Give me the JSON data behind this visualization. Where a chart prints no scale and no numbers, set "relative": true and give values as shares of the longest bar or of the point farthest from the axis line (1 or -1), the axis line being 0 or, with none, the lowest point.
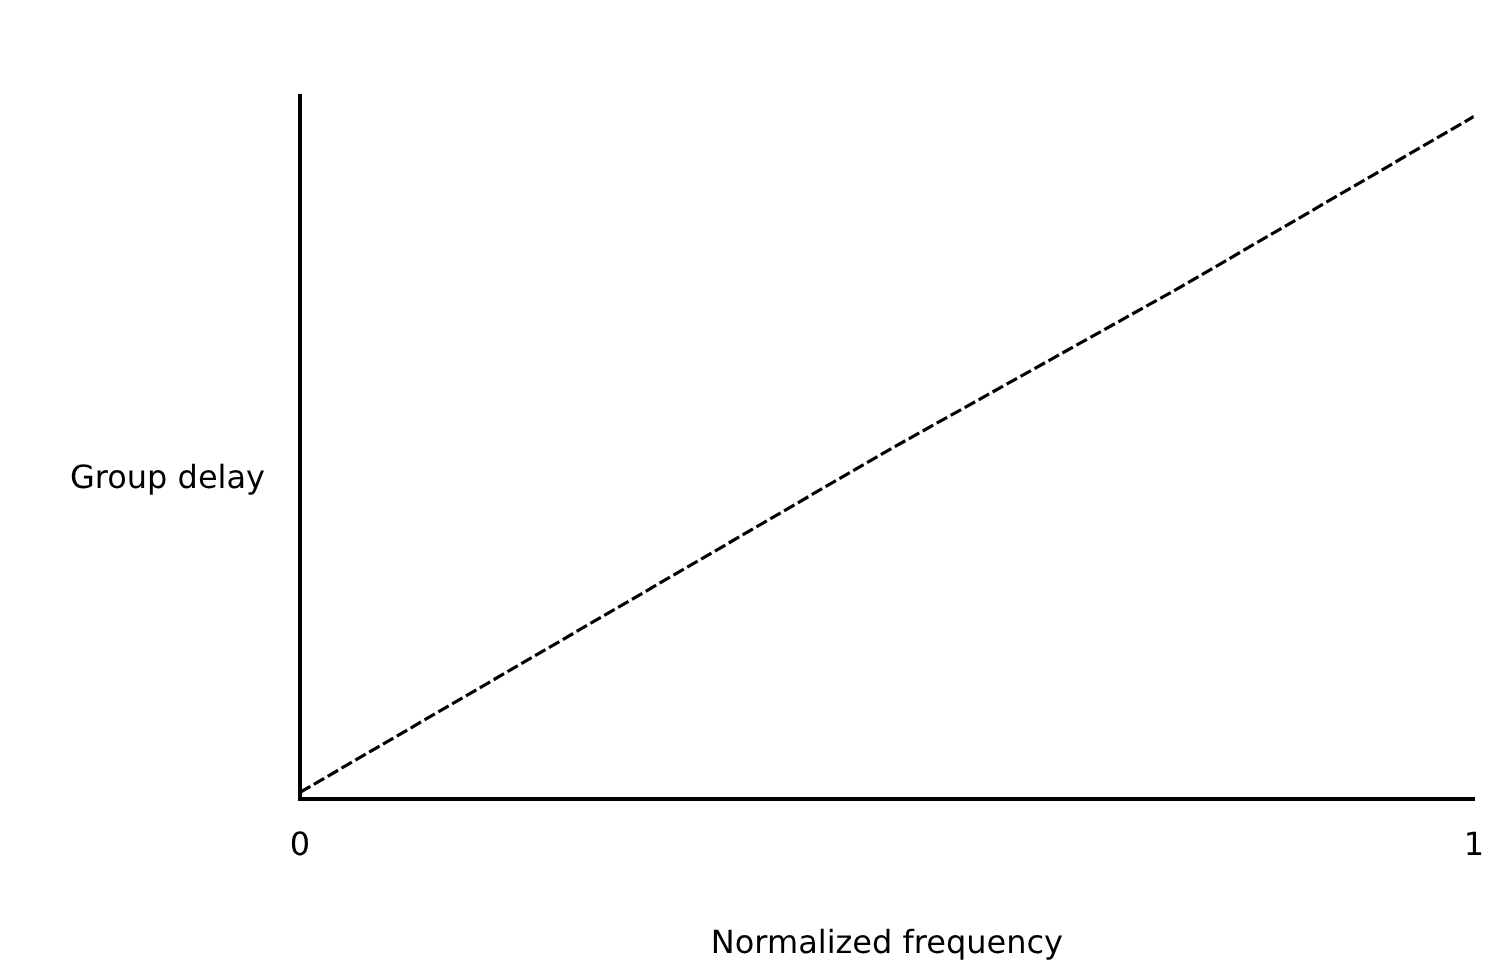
{
  "chart_data": {
    "type": "line",
    "xlabel": "Normalized frequency",
    "ylabel": "Group delay",
    "relative": true,
    "x": [
      0,
      0.25,
      0.5,
      0.75,
      1
    ],
    "xlim": [
      0,
      1
    ],
    "xticks": [
      0,
      1
    ],
    "series": [
      {
        "color": "#000000",
        "values": [
          0.01,
          0.26,
          0.51,
          0.75,
          1
        ]
      }
    ],
    "grid": false,
    "legend": false,
    "marker": "none",
    "line_style": "dashed"
  }
}
